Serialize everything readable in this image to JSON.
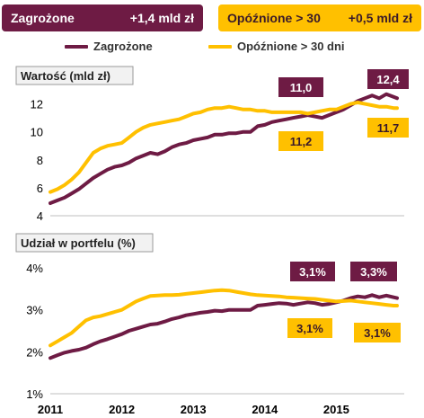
{
  "tags": {
    "zagrozone": {
      "label": "Zagrożone",
      "value": "+1,4 mld zł",
      "color": "#6e1b44"
    },
    "opoznione": {
      "label": "Opóźnione > 30",
      "value": "+0,5 mld zł",
      "color": "#ffc000"
    }
  },
  "legend": {
    "zagrozone": "Zagrożone",
    "opoznione": "Opóźnione > 30 dni"
  },
  "chart_data": [
    {
      "type": "line",
      "title": "Wartość (mld zł)",
      "x_ticks": [
        "2011",
        "2012",
        "2013",
        "2014",
        "2015"
      ],
      "xlim": [
        2011.0,
        2015.95
      ],
      "ylim": [
        4,
        13
      ],
      "y_ticks": [
        "4",
        "6",
        "8",
        "10",
        "12"
      ],
      "y_tick_values": [
        4,
        6,
        8,
        10,
        12
      ],
      "series": [
        {
          "name": "Zagrożone",
          "color": "#6e1b44",
          "x": [
            2011.0,
            2011.1,
            2011.2,
            2011.3,
            2011.4,
            2011.5,
            2011.6,
            2011.7,
            2011.8,
            2011.9,
            2012.0,
            2012.1,
            2012.2,
            2012.3,
            2012.4,
            2012.5,
            2012.6,
            2012.7,
            2012.8,
            2012.9,
            2013.0,
            2013.1,
            2013.2,
            2013.3,
            2013.4,
            2013.5,
            2013.6,
            2013.7,
            2013.8,
            2013.9,
            2014.0,
            2014.1,
            2014.2,
            2014.3,
            2014.4,
            2014.5,
            2014.6,
            2014.7,
            2014.8,
            2014.9,
            2015.0,
            2015.1,
            2015.2,
            2015.3,
            2015.4,
            2015.5,
            2015.6,
            2015.7,
            2015.8,
            2015.85
          ],
          "values": [
            4.9,
            5.1,
            5.3,
            5.6,
            5.9,
            6.3,
            6.7,
            7.0,
            7.3,
            7.5,
            7.6,
            7.8,
            8.1,
            8.3,
            8.5,
            8.4,
            8.6,
            8.9,
            9.1,
            9.2,
            9.4,
            9.5,
            9.6,
            9.8,
            9.8,
            9.9,
            9.9,
            10.0,
            10.0,
            10.4,
            10.5,
            10.7,
            10.8,
            10.9,
            11.0,
            11.1,
            11.2,
            11.1,
            11.0,
            11.2,
            11.4,
            11.6,
            11.9,
            12.2,
            12.4,
            12.6,
            12.4,
            12.7,
            12.5,
            12.4
          ]
        },
        {
          "name": "Opóźnione > 30 dni",
          "color": "#ffc000",
          "x": [
            2011.0,
            2011.1,
            2011.2,
            2011.3,
            2011.4,
            2011.5,
            2011.6,
            2011.7,
            2011.8,
            2011.9,
            2012.0,
            2012.1,
            2012.2,
            2012.3,
            2012.4,
            2012.5,
            2012.6,
            2012.7,
            2012.8,
            2012.9,
            2013.0,
            2013.1,
            2013.2,
            2013.3,
            2013.4,
            2013.5,
            2013.6,
            2013.7,
            2013.8,
            2013.9,
            2014.0,
            2014.1,
            2014.2,
            2014.3,
            2014.4,
            2014.5,
            2014.6,
            2014.7,
            2014.8,
            2014.9,
            2015.0,
            2015.1,
            2015.2,
            2015.3,
            2015.4,
            2015.5,
            2015.6,
            2015.7,
            2015.8,
            2015.85
          ],
          "values": [
            5.7,
            5.9,
            6.2,
            6.6,
            7.1,
            7.8,
            8.5,
            8.8,
            9.0,
            9.1,
            9.2,
            9.6,
            10.0,
            10.3,
            10.5,
            10.6,
            10.7,
            10.8,
            10.9,
            11.1,
            11.3,
            11.4,
            11.6,
            11.7,
            11.7,
            11.8,
            11.7,
            11.6,
            11.6,
            11.5,
            11.5,
            11.4,
            11.4,
            11.4,
            11.4,
            11.4,
            11.3,
            11.4,
            11.5,
            11.6,
            11.6,
            11.8,
            12.0,
            12.1,
            12.0,
            11.9,
            11.8,
            11.8,
            11.7,
            11.7
          ]
        }
      ],
      "annotations": [
        {
          "text": "11,0",
          "series": "Zagrożone"
        },
        {
          "text": "12,4",
          "series": "Zagrożone"
        },
        {
          "text": "11,2",
          "series": "Opóźnione > 30 dni"
        },
        {
          "text": "11,7",
          "series": "Opóźnione > 30 dni"
        }
      ]
    },
    {
      "type": "line",
      "title": "Udział w portfelu (%)",
      "x_ticks": [
        "2011",
        "2012",
        "2013",
        "2014",
        "2015"
      ],
      "xlim": [
        2011.0,
        2015.95
      ],
      "ylim": [
        1,
        4
      ],
      "y_ticks": [
        "1%",
        "2%",
        "3%",
        "4%"
      ],
      "y_tick_values": [
        1,
        2,
        3,
        4
      ],
      "series": [
        {
          "name": "Zagrożone",
          "color": "#6e1b44",
          "x": [
            2011.0,
            2011.1,
            2011.2,
            2011.3,
            2011.4,
            2011.5,
            2011.6,
            2011.7,
            2011.8,
            2011.9,
            2012.0,
            2012.1,
            2012.2,
            2012.3,
            2012.4,
            2012.5,
            2012.6,
            2012.7,
            2012.8,
            2012.9,
            2013.0,
            2013.1,
            2013.2,
            2013.3,
            2013.4,
            2013.5,
            2013.6,
            2013.7,
            2013.8,
            2013.9,
            2014.0,
            2014.1,
            2014.2,
            2014.3,
            2014.4,
            2014.5,
            2014.6,
            2014.7,
            2014.8,
            2014.9,
            2015.0,
            2015.1,
            2015.2,
            2015.3,
            2015.4,
            2015.5,
            2015.6,
            2015.7,
            2015.8,
            2015.85
          ],
          "values": [
            1.85,
            1.92,
            1.98,
            2.02,
            2.05,
            2.1,
            2.18,
            2.25,
            2.3,
            2.36,
            2.42,
            2.5,
            2.55,
            2.6,
            2.65,
            2.67,
            2.72,
            2.78,
            2.82,
            2.87,
            2.9,
            2.93,
            2.95,
            2.98,
            2.97,
            3.0,
            3.0,
            3.0,
            3.0,
            3.1,
            3.12,
            3.14,
            3.16,
            3.15,
            3.12,
            3.15,
            3.18,
            3.16,
            3.12,
            3.14,
            3.18,
            3.22,
            3.28,
            3.32,
            3.3,
            3.35,
            3.3,
            3.34,
            3.3,
            3.28
          ]
        },
        {
          "name": "Opóźnione > 30 dni",
          "color": "#ffc000",
          "x": [
            2011.0,
            2011.1,
            2011.2,
            2011.3,
            2011.4,
            2011.5,
            2011.6,
            2011.7,
            2011.8,
            2011.9,
            2012.0,
            2012.1,
            2012.2,
            2012.3,
            2012.4,
            2012.5,
            2012.6,
            2012.7,
            2012.8,
            2012.9,
            2013.0,
            2013.1,
            2013.2,
            2013.3,
            2013.4,
            2013.5,
            2013.6,
            2013.7,
            2013.8,
            2013.9,
            2014.0,
            2014.1,
            2014.2,
            2014.3,
            2014.4,
            2014.5,
            2014.6,
            2014.7,
            2014.8,
            2014.9,
            2015.0,
            2015.1,
            2015.2,
            2015.3,
            2015.4,
            2015.5,
            2015.6,
            2015.7,
            2015.8,
            2015.85
          ],
          "values": [
            2.15,
            2.25,
            2.35,
            2.45,
            2.6,
            2.75,
            2.82,
            2.85,
            2.9,
            2.95,
            3.0,
            3.1,
            3.2,
            3.27,
            3.33,
            3.34,
            3.35,
            3.35,
            3.36,
            3.38,
            3.4,
            3.42,
            3.44,
            3.46,
            3.47,
            3.46,
            3.43,
            3.4,
            3.37,
            3.35,
            3.34,
            3.33,
            3.32,
            3.3,
            3.29,
            3.28,
            3.27,
            3.26,
            3.24,
            3.22,
            3.2,
            3.21,
            3.22,
            3.2,
            3.18,
            3.16,
            3.14,
            3.12,
            3.1,
            3.1
          ]
        }
      ],
      "annotations": [
        {
          "text": "3,1%",
          "series": "Zagrożone"
        },
        {
          "text": "3,3%",
          "series": "Zagrożone"
        },
        {
          "text": "3,1%",
          "series": "Opóźnione > 30 dni"
        },
        {
          "text": "3,1%",
          "series": "Opóźnione > 30 dni"
        }
      ]
    }
  ]
}
